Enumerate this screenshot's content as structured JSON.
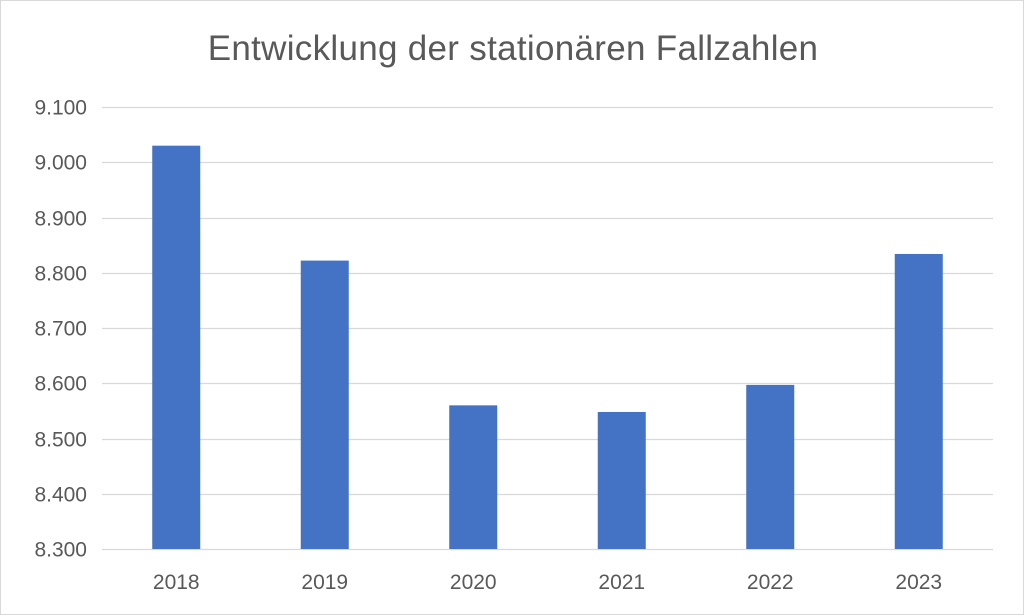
{
  "chart_data": {
    "type": "bar",
    "title": "Entwicklung der stationären Fallzahlen",
    "xlabel": "",
    "ylabel": "",
    "categories": [
      "2018",
      "2019",
      "2020",
      "2021",
      "2022",
      "2023"
    ],
    "values": [
      9030,
      8822,
      8560,
      8548,
      8597,
      8834
    ],
    "ylim": [
      8300,
      9100
    ],
    "yticks": [
      8300,
      8400,
      8500,
      8600,
      8700,
      8800,
      8900,
      9000,
      9100
    ],
    "ytick_labels": [
      "8.300",
      "8.400",
      "8.500",
      "8.600",
      "8.700",
      "8.800",
      "8.900",
      "9.000",
      "9.100"
    ],
    "grid": true,
    "legend": "none",
    "colors": {
      "bar": "#4472c4",
      "grid": "#d9d9d9",
      "text": "#595959"
    }
  }
}
